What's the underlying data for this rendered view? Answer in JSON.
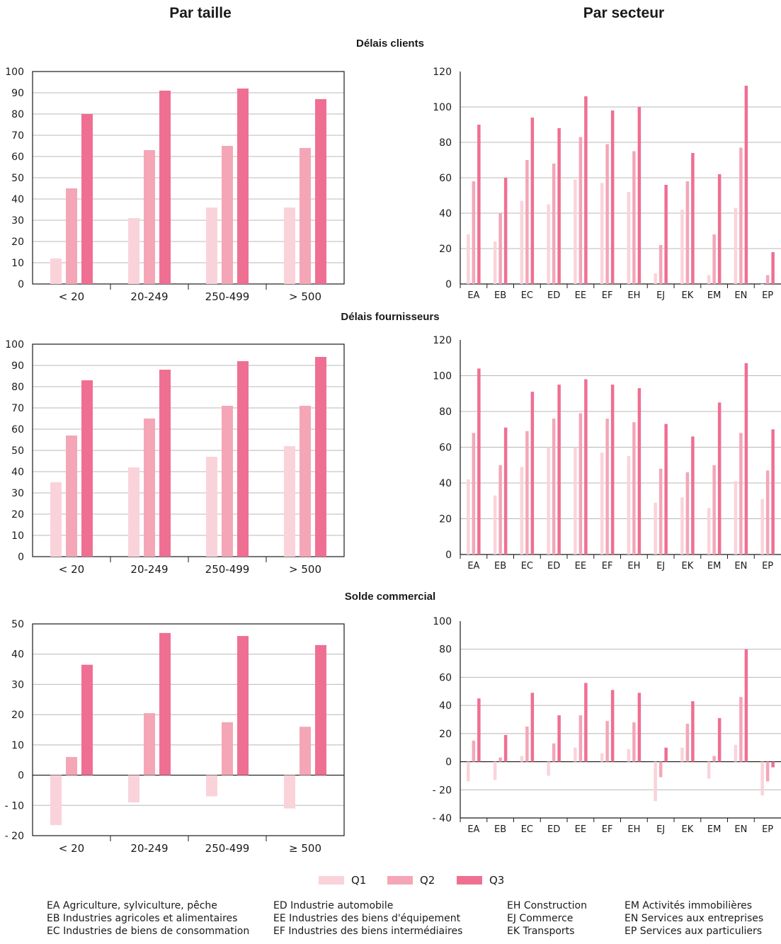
{
  "headings": {
    "left": "Par taille",
    "right": "Par secteur"
  },
  "sections": [
    {
      "title": "Délais clients"
    },
    {
      "title": "Délais fournisseurs"
    },
    {
      "title": "Solde commercial"
    }
  ],
  "colors": {
    "Q1": "#fad3da",
    "Q2": "#f4a6b7",
    "Q3": "#ef6f93",
    "grid": "#b8b8b8",
    "axis": "#1a1a1a"
  },
  "legend": [
    {
      "name": "Q1",
      "color": "#fad3da"
    },
    {
      "name": "Q2",
      "color": "#f4a6b7"
    },
    {
      "name": "Q3",
      "color": "#ef6f93"
    }
  ],
  "chart_data": [
    {
      "type": "bar",
      "section": "Délais clients",
      "panel": "size",
      "categories": [
        "< 20",
        "20-249",
        "250-499",
        "> 500"
      ],
      "ylim": [
        0,
        100
      ],
      "yticks": [
        0,
        10,
        20,
        30,
        40,
        50,
        60,
        70,
        80,
        90,
        100
      ],
      "ytick_labels": [
        "0",
        "10",
        "20",
        "30",
        "40",
        "50",
        "60",
        "70",
        "80",
        "90",
        "100"
      ],
      "series": [
        {
          "name": "Q1",
          "values": [
            12,
            31,
            36,
            36
          ]
        },
        {
          "name": "Q2",
          "values": [
            45,
            63,
            65,
            64
          ]
        },
        {
          "name": "Q3",
          "values": [
            80,
            91,
            92,
            87
          ]
        }
      ]
    },
    {
      "type": "bar",
      "section": "Délais clients",
      "panel": "sector",
      "categories": [
        "EA",
        "EB",
        "EC",
        "ED",
        "EE",
        "EF",
        "EH",
        "EJ",
        "EK",
        "EM",
        "EN",
        "EP"
      ],
      "ylim": [
        0,
        120
      ],
      "yticks": [
        0,
        20,
        40,
        60,
        80,
        100,
        120
      ],
      "ytick_labels": [
        "0",
        "20",
        "40",
        "60",
        "80",
        "100",
        "120"
      ],
      "series": [
        {
          "name": "Q1",
          "values": [
            28,
            24,
            47,
            45,
            59,
            57,
            52,
            6,
            42,
            5,
            43,
            0
          ]
        },
        {
          "name": "Q2",
          "values": [
            58,
            40,
            70,
            68,
            83,
            79,
            75,
            22,
            58,
            28,
            77,
            5
          ]
        },
        {
          "name": "Q3",
          "values": [
            90,
            60,
            94,
            88,
            106,
            98,
            100,
            56,
            74,
            62,
            112,
            18
          ]
        }
      ]
    },
    {
      "type": "bar",
      "section": "Délais fournisseurs",
      "panel": "size",
      "categories": [
        "< 20",
        "20-249",
        "250-499",
        "> 500"
      ],
      "ylim": [
        0,
        100
      ],
      "yticks": [
        0,
        10,
        20,
        30,
        40,
        50,
        60,
        70,
        80,
        90,
        100
      ],
      "ytick_labels": [
        "0",
        "10",
        "20",
        "30",
        "40",
        "50",
        "60",
        "70",
        "80",
        "90",
        "100"
      ],
      "series": [
        {
          "name": "Q1",
          "values": [
            35,
            42,
            47,
            52
          ]
        },
        {
          "name": "Q2",
          "values": [
            57,
            65,
            71,
            71
          ]
        },
        {
          "name": "Q3",
          "values": [
            83,
            88,
            92,
            94
          ]
        }
      ]
    },
    {
      "type": "bar",
      "section": "Délais fournisseurs",
      "panel": "sector",
      "categories": [
        "EA",
        "EB",
        "EC",
        "ED",
        "EE",
        "EF",
        "EH",
        "EJ",
        "EK",
        "EM",
        "EN",
        "EP"
      ],
      "ylim": [
        0,
        120
      ],
      "yticks": [
        0,
        20,
        40,
        60,
        80,
        100,
        120
      ],
      "ytick_labels": [
        "0",
        "20",
        "40",
        "60",
        "80",
        "100",
        "120"
      ],
      "series": [
        {
          "name": "Q1",
          "values": [
            42,
            33,
            49,
            60,
            60,
            57,
            55,
            29,
            32,
            26,
            41,
            31
          ]
        },
        {
          "name": "Q2",
          "values": [
            68,
            50,
            69,
            76,
            79,
            76,
            74,
            48,
            46,
            50,
            68,
            47
          ]
        },
        {
          "name": "Q3",
          "values": [
            104,
            71,
            91,
            95,
            98,
            95,
            93,
            73,
            66,
            85,
            107,
            70
          ]
        }
      ]
    },
    {
      "type": "bar",
      "section": "Solde commercial",
      "panel": "size",
      "categories": [
        "< 20",
        "20-249",
        "250-499",
        "≥ 500"
      ],
      "ylim": [
        -20,
        50
      ],
      "yticks": [
        -20,
        -10,
        0,
        10,
        20,
        30,
        40,
        50
      ],
      "ytick_labels": [
        "- 20",
        "- 10",
        "0",
        "10",
        "20",
        "30",
        "40",
        "50"
      ],
      "series": [
        {
          "name": "Q1",
          "values": [
            -16.5,
            -9,
            -7,
            -11
          ]
        },
        {
          "name": "Q2",
          "values": [
            6,
            20.5,
            17.5,
            16
          ]
        },
        {
          "name": "Q3",
          "values": [
            36.5,
            47,
            46,
            43
          ]
        }
      ]
    },
    {
      "type": "bar",
      "section": "Solde commercial",
      "panel": "sector",
      "categories": [
        "EA",
        "EB",
        "EC",
        "ED",
        "EE",
        "EF",
        "EH",
        "EJ",
        "EK",
        "EM",
        "EN",
        "EP"
      ],
      "ylim": [
        -40,
        100
      ],
      "yticks": [
        -40,
        -20,
        0,
        20,
        40,
        60,
        80,
        100
      ],
      "ytick_labels": [
        "- 40",
        "- 20",
        "0",
        "20",
        "40",
        "60",
        "80",
        "100"
      ],
      "series": [
        {
          "name": "Q1",
          "values": [
            -14,
            -13,
            4,
            -10,
            10,
            6,
            9,
            -28,
            10,
            -12,
            12,
            -24
          ]
        },
        {
          "name": "Q2",
          "values": [
            15,
            3,
            25,
            13,
            33,
            29,
            28,
            -11,
            27,
            4,
            46,
            -14
          ]
        },
        {
          "name": "Q3",
          "values": [
            45,
            19,
            49,
            33,
            56,
            51,
            49,
            10,
            43,
            31,
            80,
            -4
          ]
        }
      ]
    }
  ],
  "glossary": [
    [
      "EA Agriculture, sylviculture, pêche",
      "EB Industries agricoles et alimentaires",
      "EC Industries de biens de consommation"
    ],
    [
      "ED Industrie automobile",
      "EE Industries des biens d'équipement",
      "EF Industries des biens intermédiaires"
    ],
    [
      "EH Construction",
      "EJ Commerce",
      "EK Transports"
    ],
    [
      "EM Activités immobilières",
      "EN Services aux entreprises",
      "EP Services aux particuliers"
    ]
  ]
}
